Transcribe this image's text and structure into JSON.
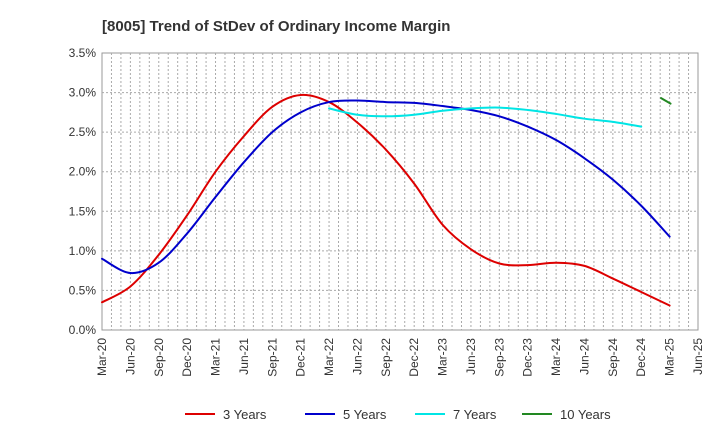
{
  "chart_data": {
    "type": "line",
    "title": "[8005]  Trend of StDev of Ordinary Income Margin",
    "xlabel": "",
    "ylabel": "",
    "ylim": [
      0,
      3.5
    ],
    "y_ticks": [
      "0.0%",
      "0.5%",
      "1.0%",
      "1.5%",
      "2.0%",
      "2.5%",
      "3.0%",
      "3.5%"
    ],
    "x_ticks": [
      "Mar-20",
      "Jun-20",
      "Sep-20",
      "Dec-20",
      "Mar-21",
      "Jun-21",
      "Sep-21",
      "Dec-21",
      "Mar-22",
      "Jun-22",
      "Sep-22",
      "Dec-22",
      "Mar-23",
      "Jun-23",
      "Sep-23",
      "Dec-23",
      "Mar-24",
      "Jun-24",
      "Sep-24",
      "Dec-24",
      "Mar-25",
      "Jun-25"
    ],
    "grid": true,
    "legend_position": "bottom",
    "series": [
      {
        "name": "3 Years",
        "color": "#dd0000",
        "start_index": 0,
        "values": [
          0.35,
          0.55,
          0.95,
          1.45,
          2.0,
          2.45,
          2.82,
          2.97,
          2.88,
          2.62,
          2.28,
          1.85,
          1.33,
          1.02,
          0.84,
          0.82,
          0.85,
          0.81,
          0.65,
          0.48,
          0.31
        ]
      },
      {
        "name": "5 Years",
        "color": "#0000cc",
        "start_index": 0,
        "values": [
          0.9,
          0.72,
          0.85,
          1.22,
          1.68,
          2.12,
          2.5,
          2.75,
          2.88,
          2.9,
          2.88,
          2.87,
          2.83,
          2.78,
          2.7,
          2.57,
          2.4,
          2.17,
          1.9,
          1.57,
          1.18
        ]
      },
      {
        "name": "7 Years",
        "color": "#00e5e5",
        "start_index": 8,
        "values": [
          2.8,
          2.72,
          2.7,
          2.72,
          2.77,
          2.8,
          2.81,
          2.78,
          2.73,
          2.67,
          2.63,
          2.57
        ]
      },
      {
        "name": "10 Years",
        "color": "#228822",
        "start_index": 19.7,
        "values": [
          2.93,
          2.86
        ]
      }
    ]
  }
}
